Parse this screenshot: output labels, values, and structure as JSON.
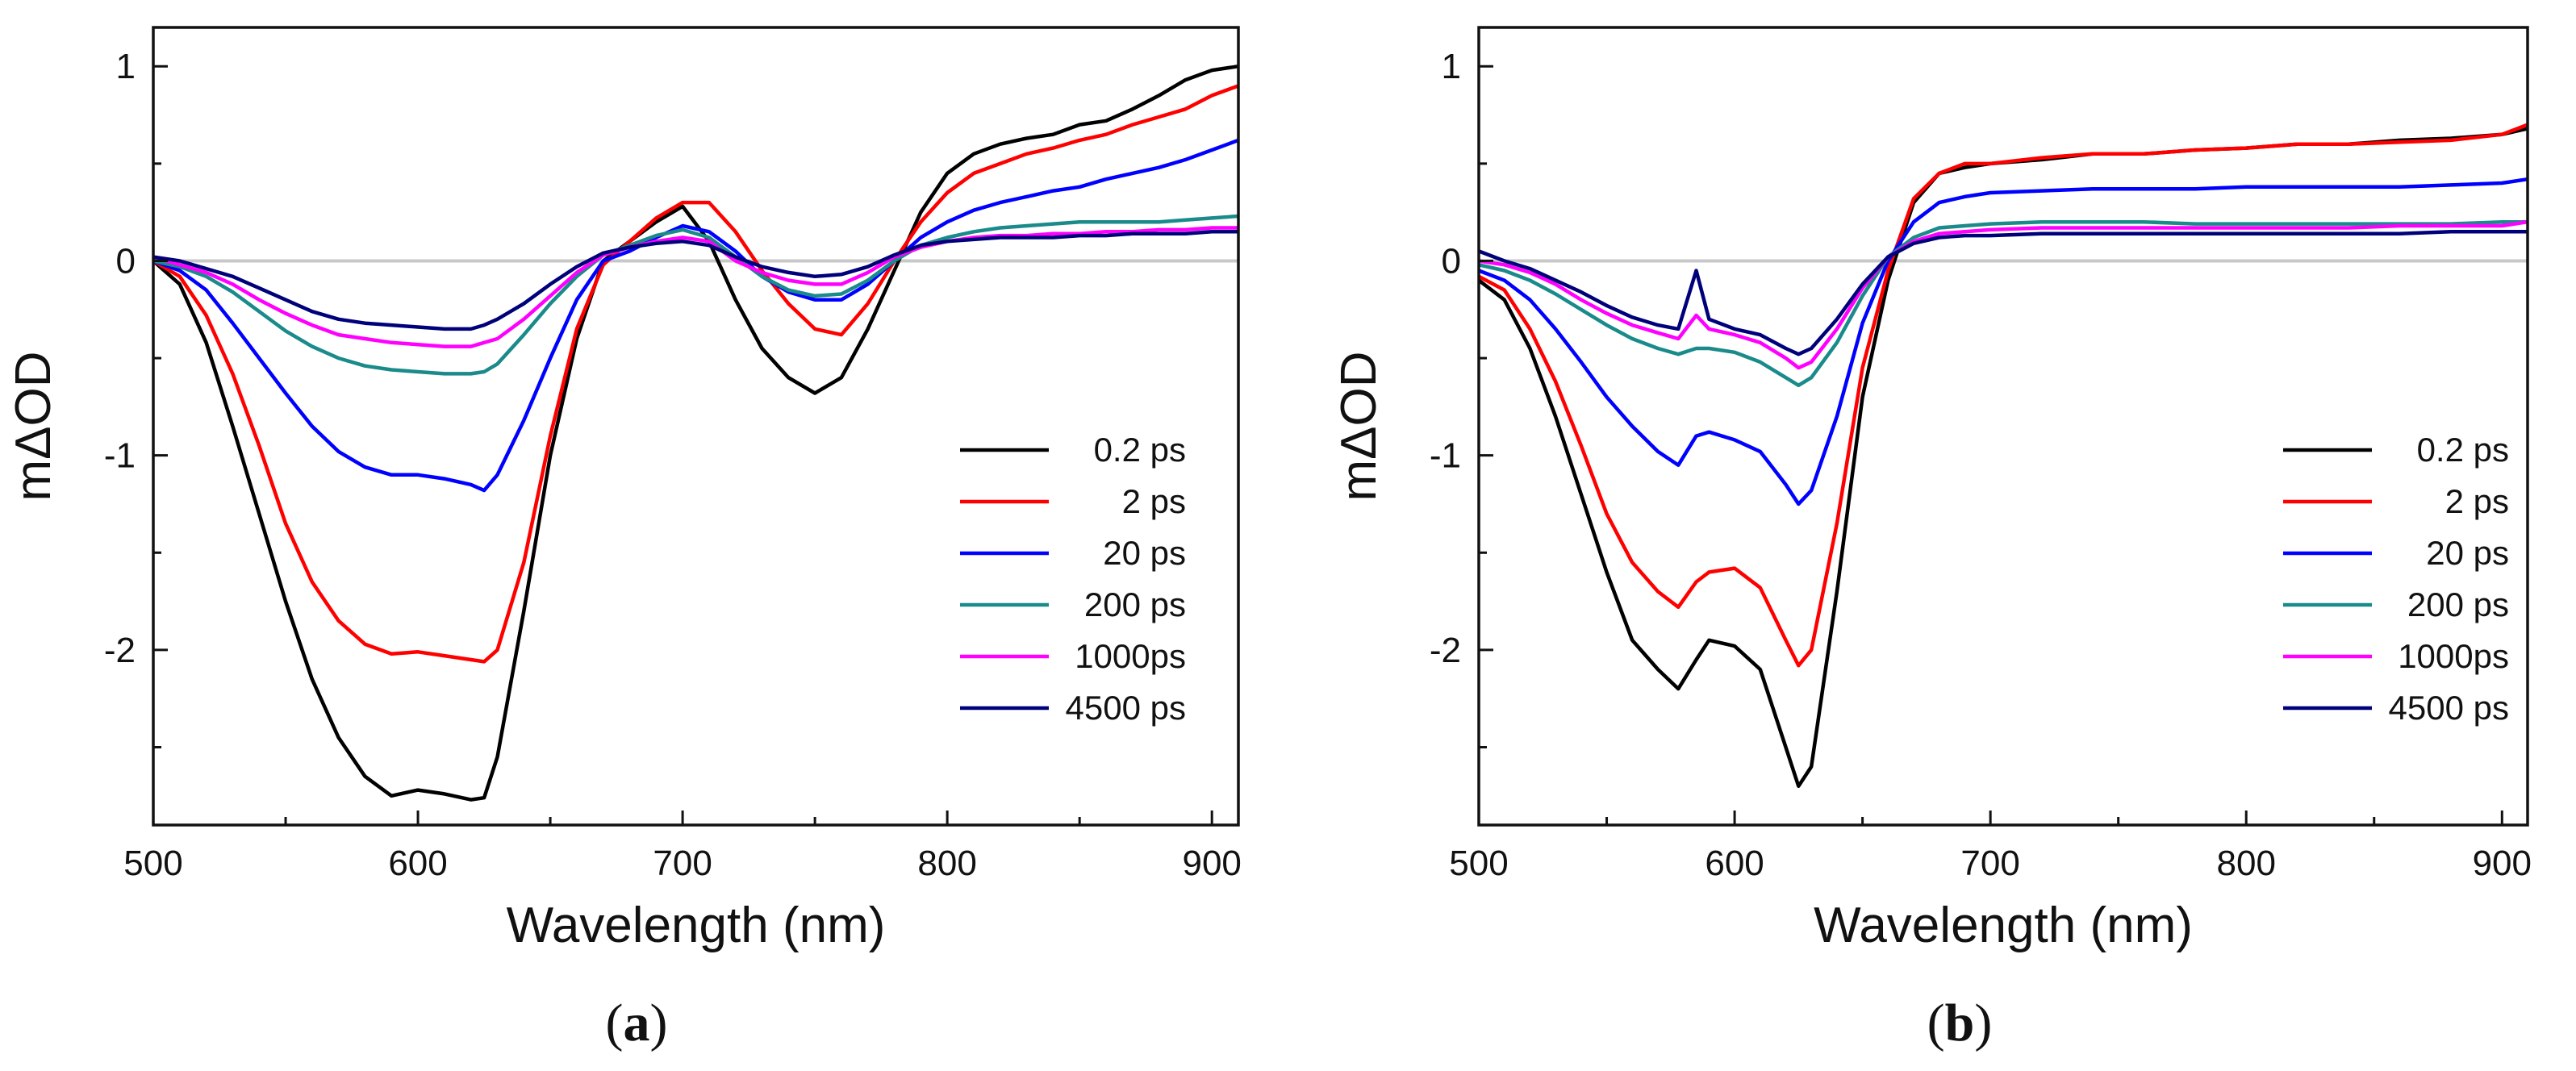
{
  "chart_data": [
    {
      "type": "line",
      "panel_label": {
        "open": "(",
        "letter": "a",
        "close": ")"
      },
      "xlabel": "Wavelength (nm)",
      "ylabel": "mΔOD",
      "xlim": [
        500,
        910
      ],
      "ylim": [
        -2.9,
        1.2
      ],
      "xticks": [
        500,
        600,
        700,
        800,
        900
      ],
      "xtick_labels": [
        "500",
        "600",
        "700",
        "800",
        "900"
      ],
      "yticks": [
        1,
        0,
        -1,
        -2
      ],
      "ytick_labels": [
        "1",
        "0",
        "-1",
        "-2"
      ],
      "zero_line": true,
      "legend_position": "lower-right",
      "series": [
        {
          "name": "0.2 ps",
          "color": "#000000",
          "x": [
            500,
            510,
            520,
            530,
            540,
            550,
            560,
            570,
            580,
            590,
            600,
            610,
            620,
            625,
            630,
            640,
            650,
            660,
            670,
            680,
            690,
            700,
            710,
            720,
            730,
            740,
            750,
            760,
            770,
            780,
            790,
            800,
            810,
            820,
            830,
            840,
            850,
            860,
            870,
            880,
            890,
            900,
            910
          ],
          "y": [
            0,
            -0.12,
            -0.42,
            -0.85,
            -1.3,
            -1.75,
            -2.15,
            -2.45,
            -2.65,
            -2.75,
            -2.72,
            -2.74,
            -2.77,
            -2.76,
            -2.55,
            -1.8,
            -1.0,
            -0.4,
            0.0,
            0.1,
            0.2,
            0.28,
            0.1,
            -0.2,
            -0.45,
            -0.6,
            -0.68,
            -0.6,
            -0.35,
            -0.05,
            0.25,
            0.45,
            0.55,
            0.6,
            0.63,
            0.65,
            0.7,
            0.72,
            0.78,
            0.85,
            0.93,
            0.98,
            1.0
          ]
        },
        {
          "name": "2 ps",
          "color": "#ff0000",
          "x": [
            500,
            510,
            520,
            530,
            540,
            550,
            560,
            570,
            580,
            590,
            600,
            610,
            620,
            625,
            630,
            640,
            650,
            660,
            670,
            680,
            690,
            700,
            710,
            720,
            730,
            740,
            750,
            760,
            770,
            780,
            790,
            800,
            810,
            820,
            830,
            840,
            850,
            860,
            870,
            880,
            890,
            900,
            910
          ],
          "y": [
            0,
            -0.08,
            -0.28,
            -0.58,
            -0.95,
            -1.35,
            -1.65,
            -1.85,
            -1.97,
            -2.02,
            -2.01,
            -2.03,
            -2.05,
            -2.06,
            -2.0,
            -1.55,
            -0.9,
            -0.35,
            -0.02,
            0.1,
            0.22,
            0.3,
            0.3,
            0.15,
            -0.05,
            -0.22,
            -0.35,
            -0.38,
            -0.22,
            0.0,
            0.2,
            0.35,
            0.45,
            0.5,
            0.55,
            0.58,
            0.62,
            0.65,
            0.7,
            0.74,
            0.78,
            0.85,
            0.9
          ]
        },
        {
          "name": "20 ps",
          "color": "#0000ff",
          "x": [
            500,
            510,
            520,
            530,
            540,
            550,
            560,
            570,
            580,
            590,
            600,
            610,
            620,
            625,
            630,
            640,
            650,
            660,
            670,
            680,
            690,
            700,
            710,
            720,
            730,
            740,
            750,
            760,
            770,
            780,
            790,
            800,
            810,
            820,
            830,
            840,
            850,
            860,
            870,
            880,
            890,
            900,
            910
          ],
          "y": [
            0,
            -0.05,
            -0.15,
            -0.32,
            -0.5,
            -0.68,
            -0.85,
            -0.98,
            -1.06,
            -1.1,
            -1.1,
            -1.12,
            -1.15,
            -1.18,
            -1.1,
            -0.82,
            -0.5,
            -0.2,
            0.0,
            0.05,
            0.12,
            0.18,
            0.15,
            0.05,
            -0.08,
            -0.16,
            -0.2,
            -0.2,
            -0.12,
            0.0,
            0.12,
            0.2,
            0.26,
            0.3,
            0.33,
            0.36,
            0.38,
            0.42,
            0.45,
            0.48,
            0.52,
            0.57,
            0.62
          ]
        },
        {
          "name": "200 ps",
          "color": "#1a8a8a",
          "x": [
            500,
            510,
            520,
            530,
            540,
            550,
            560,
            570,
            580,
            590,
            600,
            610,
            620,
            625,
            630,
            640,
            650,
            660,
            670,
            680,
            690,
            700,
            710,
            720,
            730,
            740,
            750,
            760,
            770,
            780,
            790,
            800,
            810,
            820,
            830,
            840,
            850,
            860,
            870,
            880,
            890,
            900,
            910
          ],
          "y": [
            0,
            -0.03,
            -0.08,
            -0.16,
            -0.26,
            -0.36,
            -0.44,
            -0.5,
            -0.54,
            -0.56,
            -0.57,
            -0.58,
            -0.58,
            -0.57,
            -0.53,
            -0.38,
            -0.22,
            -0.08,
            0.03,
            0.08,
            0.13,
            0.16,
            0.12,
            0.02,
            -0.08,
            -0.15,
            -0.18,
            -0.17,
            -0.1,
            0.0,
            0.08,
            0.12,
            0.15,
            0.17,
            0.18,
            0.19,
            0.2,
            0.2,
            0.2,
            0.2,
            0.21,
            0.22,
            0.23
          ]
        },
        {
          "name": "1000ps",
          "color": "#ff00ff",
          "x": [
            500,
            510,
            520,
            530,
            540,
            550,
            560,
            570,
            580,
            590,
            600,
            610,
            620,
            625,
            630,
            640,
            650,
            660,
            670,
            680,
            690,
            700,
            710,
            720,
            730,
            740,
            750,
            760,
            770,
            780,
            790,
            800,
            810,
            820,
            830,
            840,
            850,
            860,
            870,
            880,
            890,
            900,
            910
          ],
          "y": [
            0.02,
            -0.02,
            -0.06,
            -0.12,
            -0.2,
            -0.27,
            -0.33,
            -0.38,
            -0.4,
            -0.42,
            -0.43,
            -0.44,
            -0.44,
            -0.42,
            -0.4,
            -0.3,
            -0.18,
            -0.06,
            0.03,
            0.07,
            0.1,
            0.12,
            0.1,
            0.0,
            -0.06,
            -0.1,
            -0.12,
            -0.12,
            -0.06,
            0.02,
            0.07,
            0.1,
            0.12,
            0.13,
            0.13,
            0.14,
            0.14,
            0.15,
            0.15,
            0.16,
            0.16,
            0.17,
            0.17
          ]
        },
        {
          "name": "4500 ps",
          "color": "#00007a",
          "x": [
            500,
            510,
            520,
            530,
            540,
            550,
            560,
            570,
            580,
            590,
            600,
            610,
            620,
            625,
            630,
            640,
            650,
            660,
            670,
            680,
            690,
            700,
            710,
            720,
            730,
            740,
            750,
            760,
            770,
            780,
            790,
            800,
            810,
            820,
            830,
            840,
            850,
            860,
            870,
            880,
            890,
            900,
            910
          ],
          "y": [
            0.02,
            0.0,
            -0.04,
            -0.08,
            -0.14,
            -0.2,
            -0.26,
            -0.3,
            -0.32,
            -0.33,
            -0.34,
            -0.35,
            -0.35,
            -0.33,
            -0.3,
            -0.22,
            -0.12,
            -0.03,
            0.04,
            0.07,
            0.09,
            0.1,
            0.08,
            0.02,
            -0.03,
            -0.06,
            -0.08,
            -0.07,
            -0.03,
            0.03,
            0.08,
            0.1,
            0.11,
            0.12,
            0.12,
            0.12,
            0.13,
            0.13,
            0.14,
            0.14,
            0.14,
            0.15,
            0.15
          ]
        }
      ]
    },
    {
      "type": "line",
      "panel_label": {
        "open": "(",
        "letter": "b",
        "close": ")"
      },
      "xlabel": "Wavelength (nm)",
      "ylabel": "mΔOD",
      "xlim": [
        500,
        910
      ],
      "ylim": [
        -2.9,
        1.2
      ],
      "xticks": [
        500,
        600,
        700,
        800,
        900
      ],
      "xtick_labels": [
        "500",
        "600",
        "700",
        "800",
        "900"
      ],
      "yticks": [
        1,
        0,
        -1,
        -2
      ],
      "ytick_labels": [
        "1",
        "0",
        "-1",
        "-2"
      ],
      "zero_line": true,
      "legend_position": "lower-right",
      "series": [
        {
          "name": "0.2 ps",
          "color": "#000000",
          "x": [
            500,
            510,
            520,
            530,
            540,
            550,
            560,
            570,
            578,
            585,
            590,
            600,
            610,
            620,
            625,
            630,
            640,
            650,
            660,
            670,
            680,
            690,
            700,
            720,
            740,
            760,
            780,
            800,
            820,
            840,
            860,
            880,
            900,
            910
          ],
          "y": [
            -0.1,
            -0.2,
            -0.45,
            -0.8,
            -1.2,
            -1.6,
            -1.95,
            -2.1,
            -2.2,
            -2.05,
            -1.95,
            -1.98,
            -2.1,
            -2.5,
            -2.7,
            -2.6,
            -1.7,
            -0.7,
            -0.1,
            0.3,
            0.45,
            0.48,
            0.5,
            0.52,
            0.55,
            0.55,
            0.57,
            0.58,
            0.6,
            0.6,
            0.62,
            0.63,
            0.65,
            0.68
          ]
        },
        {
          "name": "2 ps",
          "color": "#ff0000",
          "x": [
            500,
            510,
            520,
            530,
            540,
            550,
            560,
            570,
            578,
            585,
            590,
            600,
            610,
            620,
            625,
            630,
            640,
            650,
            660,
            670,
            680,
            690,
            700,
            720,
            740,
            760,
            780,
            800,
            820,
            840,
            860,
            880,
            900,
            910
          ],
          "y": [
            -0.08,
            -0.15,
            -0.35,
            -0.62,
            -0.95,
            -1.3,
            -1.55,
            -1.7,
            -1.78,
            -1.65,
            -1.6,
            -1.58,
            -1.68,
            -1.95,
            -2.08,
            -2.0,
            -1.35,
            -0.55,
            -0.05,
            0.32,
            0.45,
            0.5,
            0.5,
            0.53,
            0.55,
            0.55,
            0.57,
            0.58,
            0.6,
            0.6,
            0.61,
            0.62,
            0.65,
            0.7
          ]
        },
        {
          "name": "20 ps",
          "color": "#0000ff",
          "x": [
            500,
            510,
            520,
            530,
            540,
            550,
            560,
            570,
            578,
            585,
            590,
            600,
            610,
            620,
            625,
            630,
            640,
            650,
            660,
            670,
            680,
            690,
            700,
            720,
            740,
            760,
            780,
            800,
            820,
            840,
            860,
            880,
            900,
            910
          ],
          "y": [
            -0.05,
            -0.1,
            -0.2,
            -0.35,
            -0.52,
            -0.7,
            -0.85,
            -0.98,
            -1.05,
            -0.9,
            -0.88,
            -0.92,
            -0.98,
            -1.15,
            -1.25,
            -1.18,
            -0.8,
            -0.32,
            0.0,
            0.2,
            0.3,
            0.33,
            0.35,
            0.36,
            0.37,
            0.37,
            0.37,
            0.38,
            0.38,
            0.38,
            0.38,
            0.39,
            0.4,
            0.42
          ]
        },
        {
          "name": "200 ps",
          "color": "#1a8a8a",
          "x": [
            500,
            510,
            520,
            530,
            540,
            550,
            560,
            570,
            578,
            585,
            590,
            600,
            610,
            620,
            625,
            630,
            640,
            650,
            660,
            670,
            680,
            690,
            700,
            720,
            740,
            760,
            780,
            800,
            820,
            840,
            860,
            880,
            900,
            910
          ],
          "y": [
            -0.02,
            -0.05,
            -0.1,
            -0.17,
            -0.25,
            -0.33,
            -0.4,
            -0.45,
            -0.48,
            -0.45,
            -0.45,
            -0.47,
            -0.52,
            -0.6,
            -0.64,
            -0.6,
            -0.42,
            -0.18,
            0.02,
            0.12,
            0.17,
            0.18,
            0.19,
            0.2,
            0.2,
            0.2,
            0.19,
            0.19,
            0.19,
            0.19,
            0.19,
            0.19,
            0.2,
            0.2
          ]
        },
        {
          "name": "1000ps",
          "color": "#ff00ff",
          "x": [
            500,
            510,
            520,
            530,
            540,
            550,
            560,
            570,
            578,
            585,
            590,
            600,
            610,
            620,
            625,
            630,
            640,
            650,
            660,
            670,
            680,
            690,
            700,
            720,
            740,
            760,
            780,
            800,
            820,
            840,
            860,
            880,
            900,
            910
          ],
          "y": [
            0.0,
            -0.02,
            -0.06,
            -0.12,
            -0.2,
            -0.27,
            -0.33,
            -0.37,
            -0.4,
            -0.28,
            -0.35,
            -0.38,
            -0.42,
            -0.5,
            -0.55,
            -0.52,
            -0.35,
            -0.14,
            0.02,
            0.1,
            0.14,
            0.15,
            0.16,
            0.17,
            0.17,
            0.17,
            0.17,
            0.17,
            0.17,
            0.17,
            0.18,
            0.18,
            0.18,
            0.2
          ]
        },
        {
          "name": "4500 ps",
          "color": "#00007a",
          "x": [
            500,
            510,
            520,
            530,
            540,
            550,
            560,
            570,
            578,
            585,
            590,
            600,
            610,
            620,
            625,
            630,
            640,
            650,
            660,
            670,
            680,
            690,
            700,
            720,
            740,
            760,
            780,
            800,
            820,
            840,
            860,
            880,
            900,
            910
          ],
          "y": [
            0.05,
            0.0,
            -0.04,
            -0.1,
            -0.16,
            -0.23,
            -0.29,
            -0.33,
            -0.35,
            -0.05,
            -0.3,
            -0.35,
            -0.38,
            -0.45,
            -0.48,
            -0.45,
            -0.3,
            -0.12,
            0.02,
            0.09,
            0.12,
            0.13,
            0.13,
            0.14,
            0.14,
            0.14,
            0.14,
            0.14,
            0.14,
            0.14,
            0.14,
            0.15,
            0.15,
            0.15
          ]
        }
      ]
    }
  ]
}
